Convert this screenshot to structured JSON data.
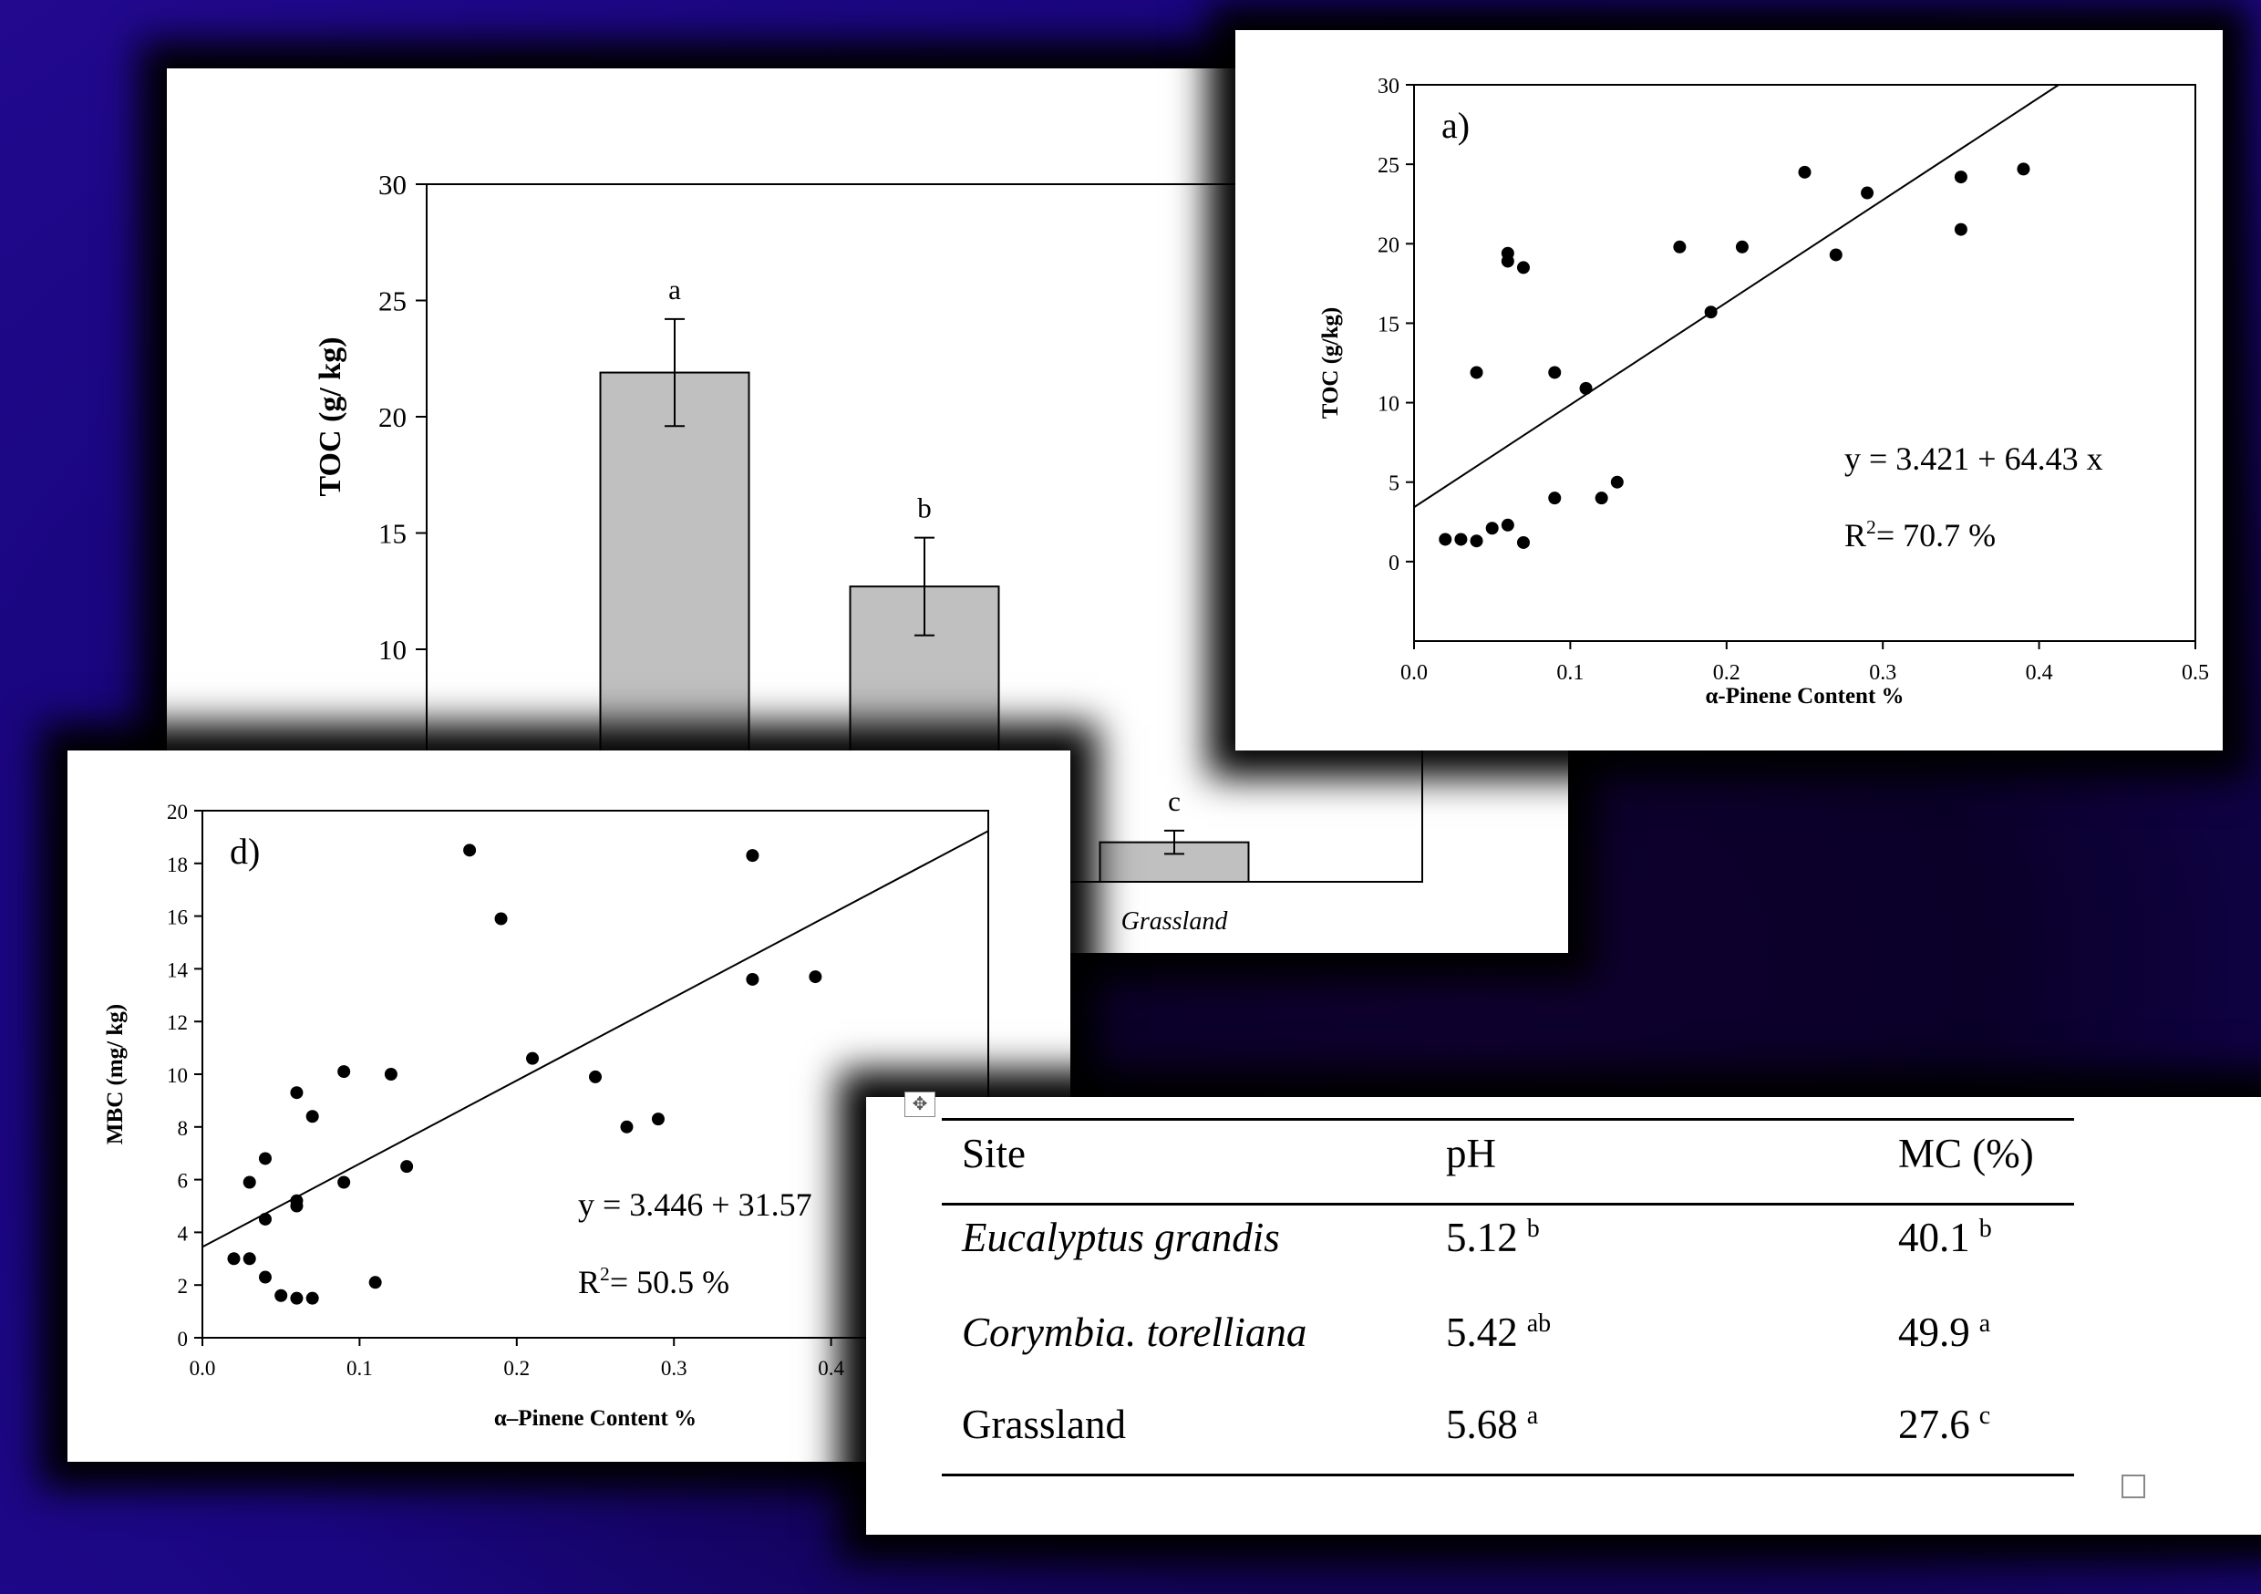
{
  "chart_data": [
    {
      "type": "bar",
      "ylabel": "TOC (g/ kg)",
      "ylim": [
        0,
        30
      ],
      "yticks": [
        10,
        15,
        20,
        25,
        30
      ],
      "categories": [
        "",
        "",
        "Grassland"
      ],
      "values": [
        21.9,
        12.7,
        1.7
      ],
      "errors": [
        2.3,
        2.1,
        0.5
      ],
      "letters": [
        "a",
        "b",
        "c"
      ],
      "bar_color": "#c0c0c0"
    },
    {
      "type": "scatter",
      "panel": "a)",
      "xlabel": "α-Pinene Content %",
      "ylabel": "TOC (g/kg)",
      "xlim": [
        0,
        0.5
      ],
      "ylim": [
        -5,
        30
      ],
      "xticks": [
        "0.0",
        "0.1",
        "0.2",
        "0.3",
        "0.4",
        "0.5"
      ],
      "yticks": [
        "0",
        "5",
        "10",
        "15",
        "20",
        "25",
        "30"
      ],
      "points": [
        [
          0.02,
          1.4
        ],
        [
          0.03,
          1.4
        ],
        [
          0.04,
          1.3
        ],
        [
          0.05,
          2.1
        ],
        [
          0.06,
          2.3
        ],
        [
          0.07,
          1.2
        ],
        [
          0.04,
          11.9
        ],
        [
          0.06,
          19.4
        ],
        [
          0.06,
          18.9
        ],
        [
          0.07,
          18.5
        ],
        [
          0.09,
          11.9
        ],
        [
          0.11,
          10.9
        ],
        [
          0.09,
          4.0
        ],
        [
          0.12,
          4.0
        ],
        [
          0.13,
          5.0
        ],
        [
          0.17,
          19.8
        ],
        [
          0.19,
          15.7
        ],
        [
          0.21,
          19.8
        ],
        [
          0.25,
          24.5
        ],
        [
          0.27,
          19.3
        ],
        [
          0.29,
          23.2
        ],
        [
          0.35,
          24.2
        ],
        [
          0.35,
          20.9
        ],
        [
          0.39,
          24.7
        ]
      ],
      "fit": {
        "intercept": 3.421,
        "slope": 64.43
      },
      "equation": "y = 3.421 + 64.43 x",
      "r2_label": "R",
      "r2_value": "= 70.7 %"
    },
    {
      "type": "scatter",
      "panel": "d)",
      "xlabel": "α–Pinene Content %",
      "ylabel": "MBC (mg/ kg)",
      "xlim": [
        0,
        0.5
      ],
      "ylim": [
        0,
        20
      ],
      "xticks": [
        "0.0",
        "0.1",
        "0.2",
        "0.3",
        "0.4"
      ],
      "yticks": [
        "0",
        "2",
        "4",
        "6",
        "8",
        "10",
        "12",
        "14",
        "16",
        "18",
        "20"
      ],
      "points": [
        [
          0.02,
          3.0
        ],
        [
          0.03,
          3.0
        ],
        [
          0.04,
          2.3
        ],
        [
          0.05,
          1.6
        ],
        [
          0.06,
          1.5
        ],
        [
          0.07,
          1.5
        ],
        [
          0.03,
          5.9
        ],
        [
          0.04,
          6.8
        ],
        [
          0.04,
          4.5
        ],
        [
          0.06,
          9.3
        ],
        [
          0.06,
          5.2
        ],
        [
          0.06,
          5.0
        ],
        [
          0.07,
          8.4
        ],
        [
          0.09,
          10.1
        ],
        [
          0.09,
          5.9
        ],
        [
          0.11,
          2.1
        ],
        [
          0.12,
          10.0
        ],
        [
          0.13,
          6.5
        ],
        [
          0.17,
          18.5
        ],
        [
          0.19,
          15.9
        ],
        [
          0.21,
          10.6
        ],
        [
          0.25,
          9.9
        ],
        [
          0.27,
          8.0
        ],
        [
          0.29,
          8.3
        ],
        [
          0.35,
          18.3
        ],
        [
          0.35,
          13.6
        ],
        [
          0.39,
          13.7
        ]
      ],
      "fit": {
        "intercept": 3.446,
        "slope": 31.57
      },
      "equation": "y = 3.446 + 31.57",
      "r2_label": "R",
      "r2_value": "= 50.5 %"
    }
  ],
  "table": {
    "move_handle": "✥",
    "headers": [
      "Site",
      "pH",
      "MC (%)"
    ],
    "rows": [
      {
        "site": "Eucalyptus grandis",
        "italic": true,
        "ph": "5.12",
        "ph_sup": "b",
        "mc": "40.1",
        "mc_sup": "b"
      },
      {
        "site": "Corymbia. torelliana",
        "italic": true,
        "ph": "5.42",
        "ph_sup": "ab",
        "mc": "49.9",
        "mc_sup": "a"
      },
      {
        "site": "Grassland",
        "italic": false,
        "ph": "5.68",
        "ph_sup": "a",
        "mc": "27.6",
        "mc_sup": "c"
      }
    ]
  }
}
